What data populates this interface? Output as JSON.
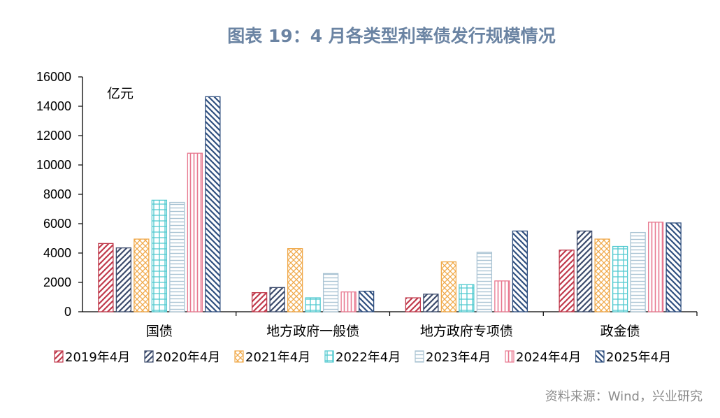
{
  "chart_data": {
    "type": "bar",
    "title": "图表 19：4 月各类型利率债发行规模情况",
    "unit_label": "亿元",
    "categories": [
      "国债",
      "地方政府一般债",
      "地方政府专项债",
      "政金债"
    ],
    "ylim": [
      0,
      16000
    ],
    "yticks": [
      "16000",
      "14000",
      "12000",
      "10000",
      "8000",
      "6000",
      "4000",
      "2000",
      "0"
    ],
    "legend_position": "bottom",
    "series": [
      {
        "name": "2019年4月",
        "color": "#c0394b",
        "pattern": "diag-right",
        "values": [
          4650,
          1300,
          950,
          4200
        ]
      },
      {
        "name": "2020年4月",
        "color": "#3b4a6b",
        "pattern": "diag-right",
        "values": [
          4350,
          1650,
          1200,
          5500
        ]
      },
      {
        "name": "2021年4月",
        "color": "#f0a94a",
        "pattern": "crosshatch",
        "values": [
          4950,
          4300,
          3400,
          4950
        ]
      },
      {
        "name": "2022年4月",
        "color": "#4fc9cf",
        "pattern": "grid",
        "values": [
          7600,
          950,
          1850,
          4450
        ]
      },
      {
        "name": "2023年4月",
        "color": "#a9c3d3",
        "pattern": "horizontal",
        "values": [
          7450,
          2600,
          4050,
          5400
        ]
      },
      {
        "name": "2024年4月",
        "color": "#e8788f",
        "pattern": "vertical",
        "values": [
          10800,
          1350,
          2100,
          6100
        ]
      },
      {
        "name": "2025年4月",
        "color": "#2f4f7f",
        "pattern": "diag-left",
        "values": [
          14650,
          1400,
          5500,
          6050
        ]
      }
    ]
  },
  "source": "资料来源：Wind，兴业研究"
}
